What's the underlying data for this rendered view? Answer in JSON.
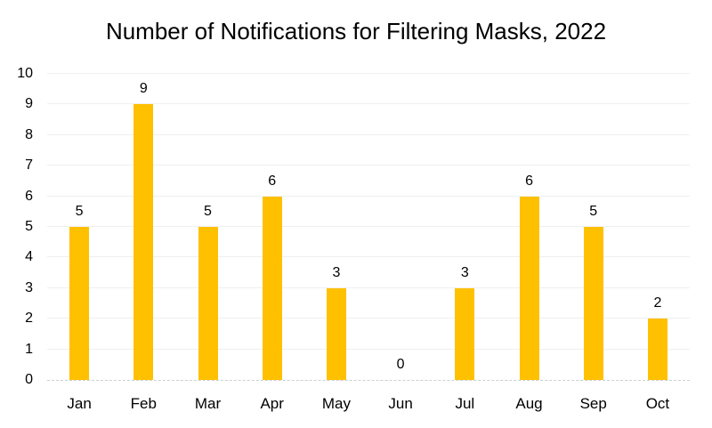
{
  "chart_data": {
    "type": "bar",
    "title": "Number of Notifications for Filtering Masks, 2022",
    "categories": [
      "Jan",
      "Feb",
      "Mar",
      "Apr",
      "May",
      "Jun",
      "Jul",
      "Aug",
      "Sep",
      "Oct"
    ],
    "values": [
      5,
      9,
      5,
      6,
      3,
      0,
      3,
      6,
      5,
      2
    ],
    "xlabel": "",
    "ylabel": "",
    "ylim": [
      0,
      10
    ],
    "yticks": [
      0,
      1,
      2,
      3,
      4,
      5,
      6,
      7,
      8,
      9,
      10
    ],
    "grid": true,
    "legend_position": "none",
    "data_labels_shown": true,
    "colors": {
      "bar_fill": "#FFC000",
      "gridline": "#EFEFEF",
      "axis_line": "#CFCFCF",
      "text": "#000000",
      "background": "#FFFFFF"
    }
  }
}
